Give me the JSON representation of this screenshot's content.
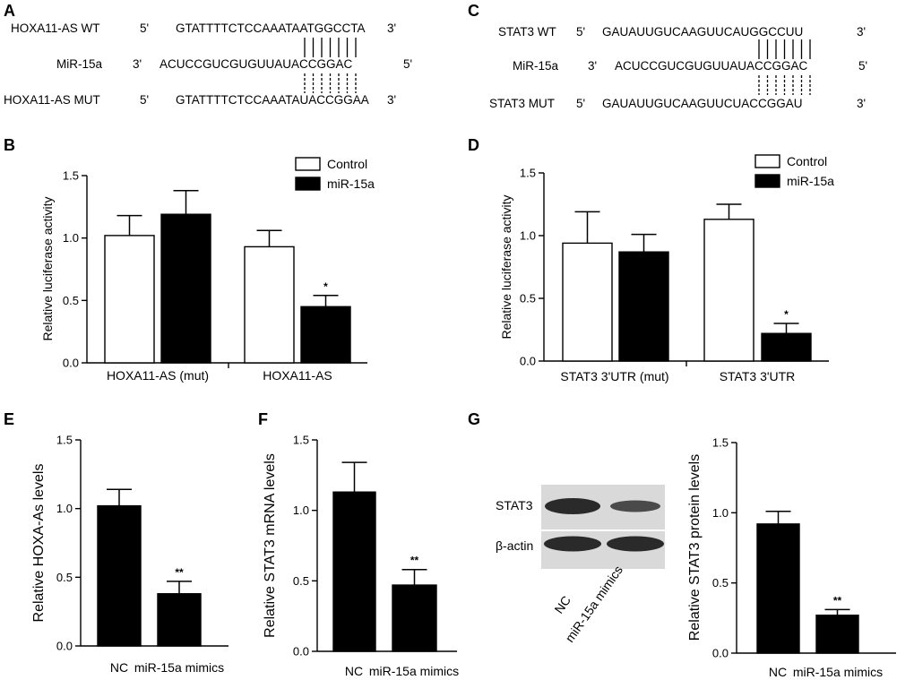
{
  "panels": {
    "A": {
      "letter": "A",
      "rows": [
        {
          "label": "HOXA11-AS WT",
          "end5": "5'",
          "seq": "GTATTTTCTCCAAATAATGGCCTA",
          "end3": "3'"
        },
        {
          "label": "MiR-15a",
          "end5": "3'",
          "seq": "ACUCCGUCGUGUUAUACCGGAC",
          "end3": "5'"
        },
        {
          "label": "HOXA11-AS MUT",
          "end5": "5'",
          "seq": "GTATTTTCTCCAAATAUACCGGAA",
          "end3": "3'"
        }
      ]
    },
    "C": {
      "letter": "C",
      "rows": [
        {
          "label": "STAT3 WT",
          "end5": "5'",
          "seq": "GAUAUUGUCAAGUUCAUGGCCUU",
          "end3": "3'"
        },
        {
          "label": "MiR-15a",
          "end5": "3'",
          "seq": "ACUCCGUCGUGUUAUACCGGAC",
          "end3": "5'"
        },
        {
          "label": "STAT3 MUT",
          "end5": "5'",
          "seq": "GAUAUUGUCAAGUUCUACCGGAU",
          "end3": "3'"
        }
      ]
    },
    "G": {
      "letter": "G",
      "blot": {
        "rows": [
          "STAT3",
          "β-actin"
        ],
        "lanes": [
          "NC",
          "miR-15a mimics"
        ]
      }
    }
  },
  "colors": {
    "control": "#ffffff",
    "treated": "#000000",
    "axis": "#000000"
  },
  "chart_data": [
    {
      "panel": "B",
      "type": "bar",
      "categories": [
        "HOXA11-AS (mut)",
        "HOXA11-AS"
      ],
      "series": [
        {
          "name": "Control",
          "values": [
            1.02,
            0.93
          ],
          "errors": [
            0.16,
            0.13
          ]
        },
        {
          "name": "miR-15a",
          "values": [
            1.19,
            0.45
          ],
          "errors": [
            0.19,
            0.09
          ]
        }
      ],
      "annotations": [
        {
          "series": 1,
          "category": 1,
          "text": "*"
        }
      ],
      "ylabel": "Relative luciferase activity",
      "ylim": [
        0,
        1.5
      ],
      "yticks": [
        "0.0",
        "0.5",
        "1.0",
        "1.5"
      ],
      "legend": "top-right"
    },
    {
      "panel": "D",
      "type": "bar",
      "categories": [
        "STAT3 3'UTR (mut)",
        "STAT3 3'UTR"
      ],
      "series": [
        {
          "name": "Control",
          "values": [
            0.94,
            1.13
          ],
          "errors": [
            0.25,
            0.12
          ]
        },
        {
          "name": "miR-15a",
          "values": [
            0.87,
            0.22
          ],
          "errors": [
            0.14,
            0.08
          ]
        }
      ],
      "annotations": [
        {
          "series": 1,
          "category": 1,
          "text": "*"
        }
      ],
      "ylabel": "Relative luciferase activity",
      "ylim": [
        0,
        1.5
      ],
      "yticks": [
        "0.0",
        "0.5",
        "1.0",
        "1.5"
      ],
      "legend": "top-right"
    },
    {
      "panel": "E",
      "type": "bar",
      "categories": [
        "NC",
        "miR-15a mimics"
      ],
      "series": [
        {
          "values": [
            1.02,
            0.38
          ],
          "errors": [
            0.12,
            0.09
          ]
        }
      ],
      "annotations": [
        {
          "series": 0,
          "category": 1,
          "text": "**"
        }
      ],
      "ylabel": "Relative HOXA-As levels",
      "ylim": [
        0,
        1.5
      ],
      "yticks": [
        "0.0",
        "0.5",
        "1.0",
        "1.5"
      ]
    },
    {
      "panel": "F",
      "type": "bar",
      "categories": [
        "NC",
        "miR-15a mimics"
      ],
      "series": [
        {
          "values": [
            1.13,
            0.47
          ],
          "errors": [
            0.21,
            0.11
          ]
        }
      ],
      "annotations": [
        {
          "series": 0,
          "category": 1,
          "text": "**"
        }
      ],
      "ylabel": "Relative STAT3 mRNA levels",
      "ylim": [
        0,
        1.5
      ],
      "yticks": [
        "0.0",
        "0.5",
        "1.0",
        "1.5"
      ]
    },
    {
      "panel": "G",
      "type": "bar",
      "categories": [
        "NC",
        "miR-15a mimics"
      ],
      "series": [
        {
          "values": [
            0.92,
            0.27
          ],
          "errors": [
            0.09,
            0.04
          ]
        }
      ],
      "annotations": [
        {
          "series": 0,
          "category": 1,
          "text": "**"
        }
      ],
      "ylabel": "Relative STAT3 protein levels",
      "ylim": [
        0,
        1.5
      ],
      "yticks": [
        "0.0",
        "0.5",
        "1.0",
        "1.5"
      ]
    }
  ]
}
